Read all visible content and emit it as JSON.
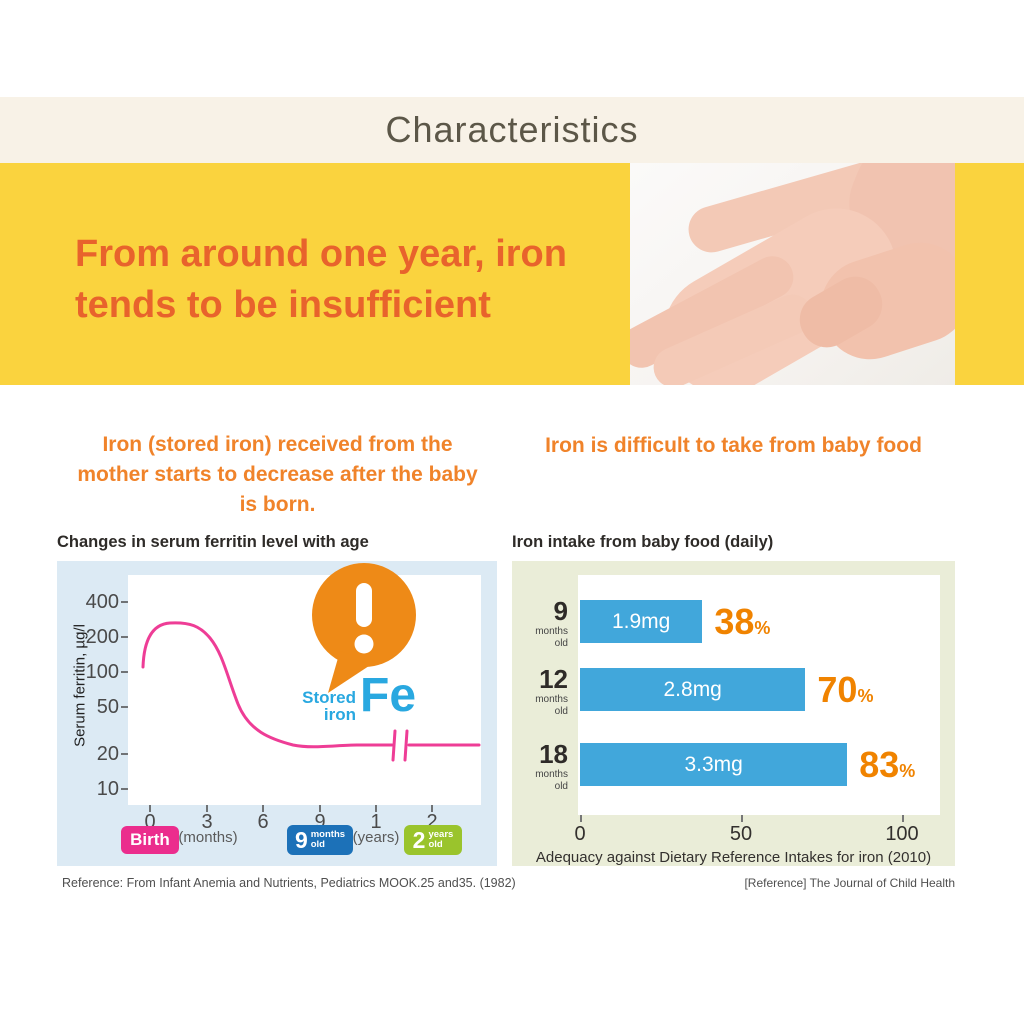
{
  "page": {
    "title": "Characteristics"
  },
  "banner": {
    "line1": "From around one year, iron",
    "line2": "tends to be insufficient",
    "photo_alt": "adult-hand-holding-baby-hand",
    "bg_color": "#FAD33E",
    "text_color": "#E8632C"
  },
  "left": {
    "heading_lines": [
      "Iron (stored iron) received from the",
      "mother starts to decrease after the baby",
      "is born."
    ],
    "chart_title": "Changes in serum ferritin level with age",
    "y_axis_label": "Serum ferritin, µg/l",
    "y_ticks": [
      "400",
      "200",
      "100",
      "50",
      "20",
      "10"
    ],
    "x_ticks": [
      "0",
      "3",
      "6",
      "9",
      "1",
      "2"
    ],
    "unit_months": "(months)",
    "unit_years": "(years)",
    "badge_birth": "Birth",
    "badge_9m": {
      "num": "9",
      "line1": "months",
      "line2": "old"
    },
    "badge_2y": {
      "num": "2",
      "line1": "years",
      "line2": "old"
    },
    "bubble": {
      "stored": "Stored",
      "iron": "iron",
      "fe": "Fe"
    },
    "reference": "Reference: From Infant Anemia and Nutrients, Pediatrics MOOK.25 and35. (1982)",
    "panel_color": "#DCEAF4",
    "curve_color": "#EE3D96",
    "bubble_color": "#EE8A17",
    "fe_color": "#29A8E0"
  },
  "right": {
    "heading": "Iron is difficult to take from baby food",
    "chart_title": "Iron intake from baby food (daily)",
    "rows": [
      {
        "age_num": "9",
        "age_line1": "months",
        "age_line2": "old",
        "mg": "1.9mg",
        "pct": "38",
        "pct_sign": "%",
        "pct_value": 38
      },
      {
        "age_num": "12",
        "age_line1": "months",
        "age_line2": "old",
        "mg": "2.8mg",
        "pct": "70",
        "pct_sign": "%",
        "pct_value": 70
      },
      {
        "age_num": "18",
        "age_line1": "months",
        "age_line2": "old",
        "mg": "3.3mg",
        "pct": "83",
        "pct_sign": "%",
        "pct_value": 83
      }
    ],
    "x_ticks": [
      "0",
      "50",
      "100"
    ],
    "axis_caption": "Adequacy against Dietary Reference Intakes for iron (2010)",
    "reference": "[Reference] The Journal of Child Health",
    "panel_color": "#EAEDD8",
    "bar_color": "#41A7DB",
    "pct_color": "#F08300"
  },
  "chart_data": [
    {
      "type": "line",
      "title": "Changes in serum ferritin level with age",
      "xlabel_units": [
        "(months)",
        "(years)"
      ],
      "ylabel": "Serum ferritin, µg/l",
      "y_scale": "log",
      "ylim": [
        10,
        500
      ],
      "yticks": [
        400,
        200,
        100,
        50,
        20,
        10
      ],
      "xticks_labels": [
        "0",
        "3",
        "6",
        "9",
        "1",
        "2"
      ],
      "x_months": [
        0,
        0.5,
        1,
        1.5,
        2,
        3,
        3.5,
        4,
        5,
        6,
        7,
        8,
        9,
        10,
        12,
        24,
        27
      ],
      "values": [
        110,
        190,
        245,
        260,
        258,
        235,
        170,
        95,
        58,
        40,
        32,
        27,
        25,
        25,
        25,
        25,
        25
      ],
      "annotations": [
        "Birth at 0 months",
        "9 months old",
        "2 years old",
        "axis break after 9 months",
        "Stored iron Fe callout"
      ],
      "series_color": "#EE3D96"
    },
    {
      "type": "bar",
      "title": "Iron intake from baby food (daily)",
      "orientation": "horizontal",
      "categories": [
        "9 months old",
        "12 months old",
        "18 months old"
      ],
      "values_pct": [
        38,
        70,
        83
      ],
      "values_mg": [
        1.9,
        2.8,
        3.3
      ],
      "xlabel": "Adequacy against Dietary Reference Intakes for iron (2010)",
      "xlim": [
        0,
        110
      ],
      "xticks": [
        0,
        50,
        100
      ],
      "bar_color": "#41A7DB"
    }
  ]
}
